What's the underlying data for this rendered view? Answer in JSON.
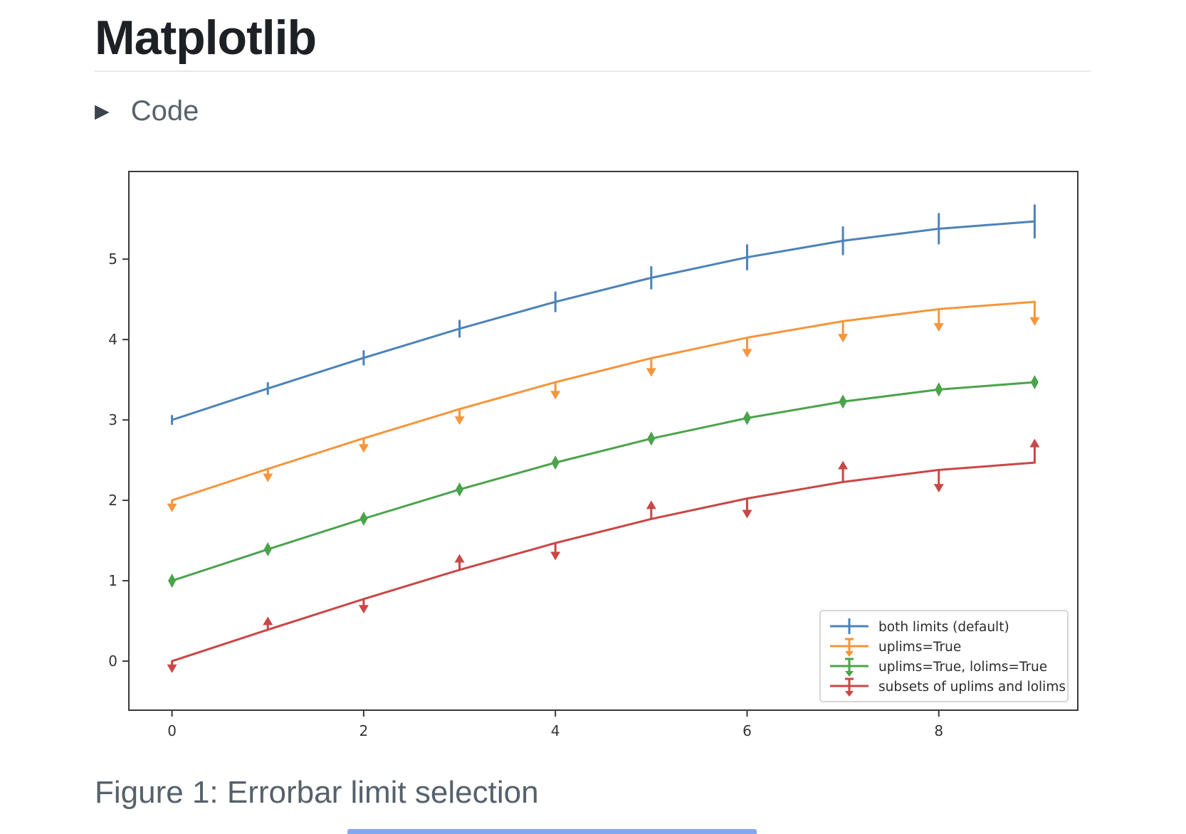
{
  "page": {
    "title": "Matplotlib",
    "code_toggle": {
      "label": "Code",
      "icon_glyph": "▶"
    },
    "caption": "Figure 1: Errorbar limit selection"
  },
  "colors": {
    "title_text": "#1d2126",
    "muted_text": "#57616b",
    "divider": "#e6e9eb",
    "spine": "#3a3a3a",
    "tick_label": "#343434",
    "legend_border": "#c9c9c9",
    "bottom_strip": "#83a8f0",
    "series_blue": "#4b83b8",
    "series_orange": "#f5953c",
    "series_green": "#4ba34b",
    "series_red": "#c94746"
  },
  "chart_data": {
    "type": "line",
    "title": "",
    "xlabel": "",
    "ylabel": "",
    "grid": false,
    "legend_position": "lower right",
    "x": [
      0,
      1,
      2,
      3,
      4,
      5,
      6,
      7,
      8,
      9
    ],
    "xticks": [
      0,
      2,
      4,
      6,
      8
    ],
    "yticks": [
      0,
      1,
      2,
      3,
      4,
      5
    ],
    "xlim": [
      -0.45,
      9.45
    ],
    "ylim": [
      -0.61,
      6.09
    ],
    "yerr": [
      0.05,
      0.067,
      0.083,
      0.1,
      0.117,
      0.133,
      0.15,
      0.167,
      0.183,
      0.2
    ],
    "series": [
      {
        "name": "both limits (default)",
        "color": "#4b83b8",
        "limit_style": "none",
        "values": [
          3.0,
          3.391,
          3.772,
          4.135,
          4.469,
          4.768,
          5.023,
          5.228,
          5.378,
          5.469
        ]
      },
      {
        "name": "uplims=True",
        "color": "#f5953c",
        "limit_style": "uplims",
        "values": [
          2.0,
          2.391,
          2.772,
          3.135,
          3.469,
          3.768,
          4.023,
          4.228,
          4.378,
          4.469
        ]
      },
      {
        "name": "uplims=True, lolims=True",
        "color": "#4ba34b",
        "limit_style": "uplims+lolims",
        "values": [
          1.0,
          1.391,
          1.772,
          2.135,
          2.469,
          2.768,
          3.023,
          3.228,
          3.378,
          3.469
        ]
      },
      {
        "name": "subsets of uplims and lolims",
        "color": "#c94746",
        "limit_style": "alternating",
        "uplims": [
          true,
          false,
          true,
          false,
          true,
          false,
          true,
          false,
          true,
          false
        ],
        "lolims": [
          false,
          true,
          false,
          true,
          false,
          true,
          false,
          true,
          false,
          true
        ],
        "values": [
          0.0,
          0.391,
          0.772,
          1.135,
          1.469,
          1.768,
          2.023,
          2.228,
          2.378,
          2.469
        ]
      }
    ]
  }
}
